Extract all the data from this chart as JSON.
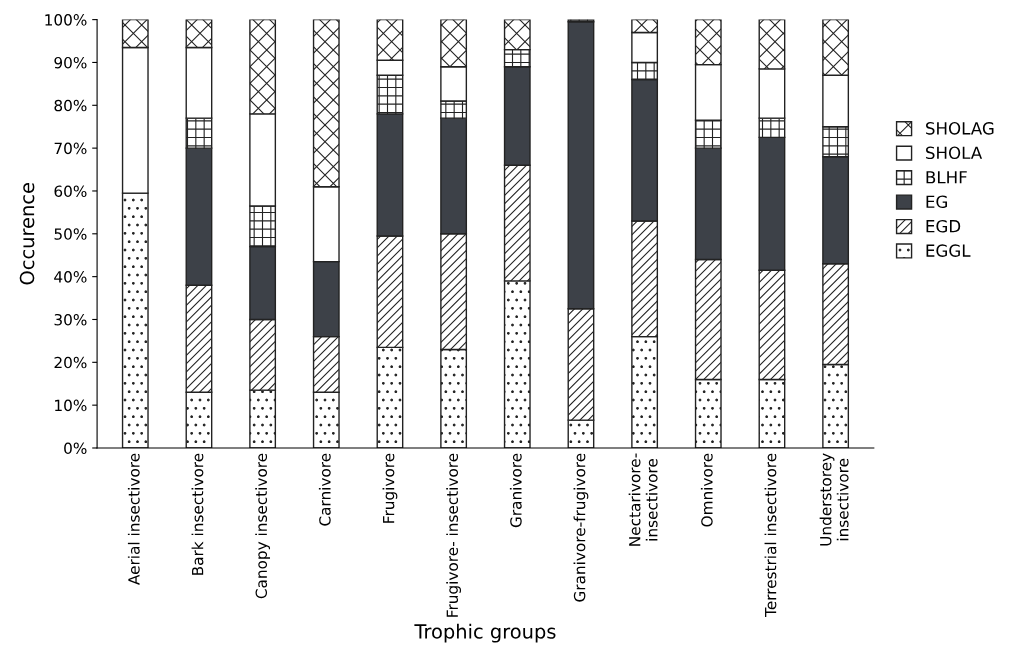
{
  "chart_data": {
    "type": "bar",
    "stacked": true,
    "xlabel": "Trophic groups",
    "ylabel": "Occurence",
    "categories": [
      "Aerial insectivore",
      "Bark insectivore",
      "Canopy insectivore",
      "Carnivore",
      "Frugivore",
      "Frugivore- insectivore",
      "Granivore",
      "Granivore-frugivore",
      "Nectarivore-\ninsectivore",
      "Omnivore",
      "Terrestrial insectivore",
      "Understorey\ninsectivore"
    ],
    "series": [
      {
        "name": "EGGL",
        "color": "#222222",
        "values": [
          59.5,
          13,
          13.5,
          13,
          23.5,
          23,
          39,
          6.5,
          26,
          16,
          16,
          19.5
        ]
      },
      {
        "name": "EGD",
        "color": "#222222",
        "values": [
          0,
          25,
          16.5,
          13,
          26,
          27,
          27,
          26,
          27,
          28,
          25.5,
          23.5
        ]
      },
      {
        "name": "EG",
        "color": "#3d4148",
        "values": [
          0,
          32,
          17,
          17.5,
          28.5,
          27,
          23,
          67,
          33,
          26,
          31,
          25
        ]
      },
      {
        "name": "BLHF",
        "color": "#222222",
        "values": [
          0,
          7,
          9.5,
          0,
          9,
          4,
          4,
          0.5,
          4,
          6.5,
          4.5,
          7
        ]
      },
      {
        "name": "SHOLA",
        "color": "#ffffff",
        "values": [
          34,
          16.5,
          21.5,
          17.5,
          3.5,
          8,
          0,
          0,
          7,
          13,
          11.5,
          12
        ]
      },
      {
        "name": "SHOLAG",
        "color": "#222222",
        "values": [
          6.5,
          6.5,
          22,
          39,
          9.5,
          11,
          7,
          0,
          3,
          10.5,
          11.5,
          13
        ]
      }
    ],
    "ylim": [
      0,
      100
    ],
    "yticks": [
      {
        "value": 0,
        "label": "0%"
      },
      {
        "value": 10,
        "label": "10%"
      },
      {
        "value": 20,
        "label": "20%"
      },
      {
        "value": 30,
        "label": "30%"
      },
      {
        "value": 40,
        "label": "40%"
      },
      {
        "value": 50,
        "label": "50%"
      },
      {
        "value": 60,
        "label": "60%"
      },
      {
        "value": 70,
        "label": "70%"
      },
      {
        "value": 80,
        "label": "80%"
      },
      {
        "value": 90,
        "label": "90%"
      },
      {
        "value": 100,
        "label": "100%"
      }
    ],
    "grid": false,
    "legend": "right"
  }
}
